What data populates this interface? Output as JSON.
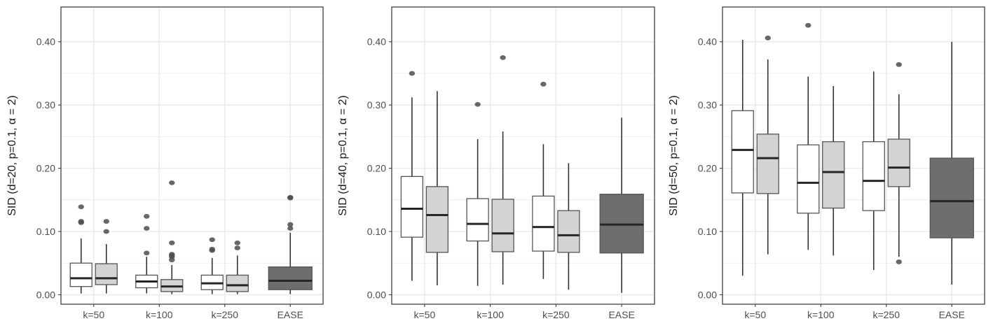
{
  "colors": {
    "white_box": "#ffffff",
    "light_box": "#d3d3d3",
    "dark_box": "#6e6e6e",
    "outlier": "#4d4d4d",
    "median": "#262626",
    "grid": "#ebebeb"
  },
  "chart_data": [
    {
      "type": "boxplot",
      "ylabel": "SID (d=20, p=0.1, α = 2)",
      "ylim": [
        -0.015,
        0.455
      ],
      "y_ticks": [
        {
          "value": 0.0,
          "label": "0.00"
        },
        {
          "value": 0.1,
          "label": "0.10"
        },
        {
          "value": 0.2,
          "label": "0.20"
        },
        {
          "value": 0.3,
          "label": "0.30"
        },
        {
          "value": 0.4,
          "label": "0.40"
        }
      ],
      "categories": [
        "k=50",
        "k=100",
        "k=250",
        "EASE"
      ],
      "boxes": [
        {
          "category": "k=50",
          "fill": "white",
          "stats": {
            "min": 0.002,
            "q1": 0.013,
            "median": 0.026,
            "q3": 0.05,
            "max": 0.089
          },
          "outliers": [
            0.114,
            0.116,
            0.139
          ]
        },
        {
          "category": "k=50",
          "fill": "light",
          "stats": {
            "min": 0.002,
            "q1": 0.016,
            "median": 0.026,
            "q3": 0.049,
            "max": 0.08
          },
          "outliers": [
            0.1,
            0.116
          ]
        },
        {
          "category": "k=100",
          "fill": "white",
          "stats": {
            "min": 0.002,
            "q1": 0.011,
            "median": 0.021,
            "q3": 0.031,
            "max": 0.06
          },
          "outliers": [
            0.066,
            0.105,
            0.124
          ]
        },
        {
          "category": "k=100",
          "fill": "light",
          "stats": {
            "min": 0.001,
            "q1": 0.005,
            "median": 0.013,
            "q3": 0.024,
            "max": 0.047
          },
          "outliers": [
            0.055,
            0.06,
            0.062,
            0.064,
            0.082,
            0.177
          ]
        },
        {
          "category": "k=250",
          "fill": "white",
          "stats": {
            "min": 0.001,
            "q1": 0.008,
            "median": 0.018,
            "q3": 0.031,
            "max": 0.058
          },
          "outliers": [
            0.07,
            0.072,
            0.087
          ]
        },
        {
          "category": "k=250",
          "fill": "light",
          "stats": {
            "min": 0.001,
            "q1": 0.005,
            "median": 0.015,
            "q3": 0.031,
            "max": 0.062
          },
          "outliers": [
            0.074,
            0.082
          ]
        },
        {
          "category": "EASE",
          "fill": "dark",
          "stats": {
            "min": 0.001,
            "q1": 0.008,
            "median": 0.022,
            "q3": 0.044,
            "max": 0.098
          },
          "outliers": [
            0.105,
            0.111,
            0.153,
            0.154
          ]
        }
      ]
    },
    {
      "type": "boxplot",
      "ylabel": "SID (d=40, p=0.1, α = 2)",
      "ylim": [
        -0.015,
        0.455
      ],
      "y_ticks": [
        {
          "value": 0.0,
          "label": "0.00"
        },
        {
          "value": 0.1,
          "label": "0.10"
        },
        {
          "value": 0.2,
          "label": "0.20"
        },
        {
          "value": 0.3,
          "label": "0.30"
        },
        {
          "value": 0.4,
          "label": "0.40"
        }
      ],
      "categories": [
        "k=50",
        "k=100",
        "k=250",
        "EASE"
      ],
      "boxes": [
        {
          "category": "k=50",
          "fill": "white",
          "stats": {
            "min": 0.022,
            "q1": 0.091,
            "median": 0.136,
            "q3": 0.187,
            "max": 0.312
          },
          "outliers": [
            0.35
          ]
        },
        {
          "category": "k=50",
          "fill": "light",
          "stats": {
            "min": 0.015,
            "q1": 0.067,
            "median": 0.126,
            "q3": 0.171,
            "max": 0.322
          },
          "outliers": []
        },
        {
          "category": "k=100",
          "fill": "white",
          "stats": {
            "min": 0.014,
            "q1": 0.085,
            "median": 0.112,
            "q3": 0.152,
            "max": 0.246
          },
          "outliers": [
            0.301
          ]
        },
        {
          "category": "k=100",
          "fill": "light",
          "stats": {
            "min": 0.016,
            "q1": 0.068,
            "median": 0.097,
            "q3": 0.151,
            "max": 0.258
          },
          "outliers": [
            0.375
          ]
        },
        {
          "category": "k=250",
          "fill": "white",
          "stats": {
            "min": 0.025,
            "q1": 0.069,
            "median": 0.107,
            "q3": 0.156,
            "max": 0.238
          },
          "outliers": [
            0.333
          ]
        },
        {
          "category": "k=250",
          "fill": "light",
          "stats": {
            "min": 0.008,
            "q1": 0.067,
            "median": 0.094,
            "q3": 0.133,
            "max": 0.208
          },
          "outliers": []
        },
        {
          "category": "EASE",
          "fill": "dark",
          "stats": {
            "min": 0.003,
            "q1": 0.066,
            "median": 0.111,
            "q3": 0.159,
            "max": 0.28
          },
          "outliers": []
        }
      ]
    },
    {
      "type": "boxplot",
      "ylabel": "SID (d=50, p=0.1, α = 2)",
      "ylim": [
        -0.015,
        0.455
      ],
      "y_ticks": [
        {
          "value": 0.0,
          "label": "0.00"
        },
        {
          "value": 0.1,
          "label": "0.10"
        },
        {
          "value": 0.2,
          "label": "0.20"
        },
        {
          "value": 0.3,
          "label": "0.30"
        },
        {
          "value": 0.4,
          "label": "0.40"
        }
      ],
      "categories": [
        "k=50",
        "k=100",
        "k=250",
        "EASE"
      ],
      "boxes": [
        {
          "category": "k=50",
          "fill": "white",
          "stats": {
            "min": 0.03,
            "q1": 0.161,
            "median": 0.229,
            "q3": 0.291,
            "max": 0.403
          },
          "outliers": []
        },
        {
          "category": "k=50",
          "fill": "light",
          "stats": {
            "min": 0.064,
            "q1": 0.16,
            "median": 0.216,
            "q3": 0.254,
            "max": 0.372
          },
          "outliers": [
            0.406
          ]
        },
        {
          "category": "k=100",
          "fill": "white",
          "stats": {
            "min": 0.071,
            "q1": 0.129,
            "median": 0.177,
            "q3": 0.237,
            "max": 0.345
          },
          "outliers": [
            0.426
          ]
        },
        {
          "category": "k=100",
          "fill": "light",
          "stats": {
            "min": 0.062,
            "q1": 0.137,
            "median": 0.194,
            "q3": 0.242,
            "max": 0.33
          },
          "outliers": []
        },
        {
          "category": "k=250",
          "fill": "white",
          "stats": {
            "min": 0.039,
            "q1": 0.133,
            "median": 0.18,
            "q3": 0.242,
            "max": 0.353
          },
          "outliers": []
        },
        {
          "category": "k=250",
          "fill": "light",
          "stats": {
            "min": 0.06,
            "q1": 0.171,
            "median": 0.201,
            "q3": 0.246,
            "max": 0.317
          },
          "outliers": [
            0.052,
            0.364
          ]
        },
        {
          "category": "EASE",
          "fill": "dark",
          "stats": {
            "min": 0.016,
            "q1": 0.09,
            "median": 0.148,
            "q3": 0.216,
            "max": 0.4
          },
          "outliers": []
        }
      ]
    }
  ]
}
